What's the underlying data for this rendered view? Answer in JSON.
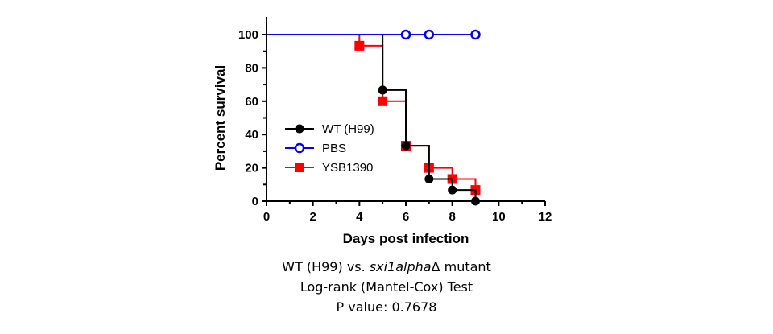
{
  "chart_data": {
    "type": "line",
    "xlabel": "Days post infection",
    "ylabel": "Percent survival",
    "xlim": [
      0,
      12
    ],
    "ylim": [
      0,
      100
    ],
    "x_ticks": [
      "0",
      "2",
      "4",
      "6",
      "8",
      "10",
      "12"
    ],
    "y_ticks": [
      "0",
      "20",
      "40",
      "60",
      "80",
      "100"
    ],
    "legend_position": "center-left",
    "grid": false,
    "series": [
      {
        "name": "WT (H99)",
        "color": "#000000",
        "marker": "filled-circle",
        "step": [
          [
            0,
            100
          ],
          [
            5,
            100
          ],
          [
            5,
            66.7
          ],
          [
            6,
            66.7
          ],
          [
            6,
            33.3
          ],
          [
            7,
            33.3
          ],
          [
            7,
            13.3
          ],
          [
            8,
            13.3
          ],
          [
            8,
            6.7
          ],
          [
            9,
            6.7
          ],
          [
            9,
            0
          ],
          [
            10,
            0
          ]
        ],
        "points": [
          [
            5,
            66.7
          ],
          [
            6,
            33.3
          ],
          [
            7,
            13.3
          ],
          [
            8,
            6.7
          ],
          [
            9,
            0
          ]
        ]
      },
      {
        "name": "PBS",
        "color": "#0000ff",
        "marker": "open-circle",
        "step": [
          [
            0,
            100
          ],
          [
            9,
            100
          ]
        ],
        "points": [
          [
            6,
            100
          ],
          [
            7,
            100
          ],
          [
            9,
            100
          ]
        ]
      },
      {
        "name": "YSB1390",
        "color": "#ff0000",
        "marker": "filled-square",
        "step": [
          [
            0,
            100
          ],
          [
            4,
            100
          ],
          [
            4,
            93.3
          ],
          [
            5,
            93.3
          ],
          [
            5,
            60
          ],
          [
            6,
            60
          ],
          [
            6,
            33.3
          ],
          [
            7,
            33.3
          ],
          [
            7,
            20
          ],
          [
            8,
            20
          ],
          [
            8,
            13.3
          ],
          [
            9,
            13.3
          ],
          [
            9,
            6.7
          ]
        ],
        "points": [
          [
            4,
            93.3
          ],
          [
            5,
            60
          ],
          [
            6,
            33.3
          ],
          [
            7,
            20
          ],
          [
            8,
            13.3
          ],
          [
            9,
            6.7
          ]
        ]
      }
    ]
  },
  "caption": {
    "line1_prefix": "WT (H99) vs. ",
    "line1_italic": "sxi1alpha",
    "line1_suffix": "Δ mutant",
    "line2": "Log-rank (Mantel-Cox) Test",
    "line3": "P value: 0.7678"
  }
}
